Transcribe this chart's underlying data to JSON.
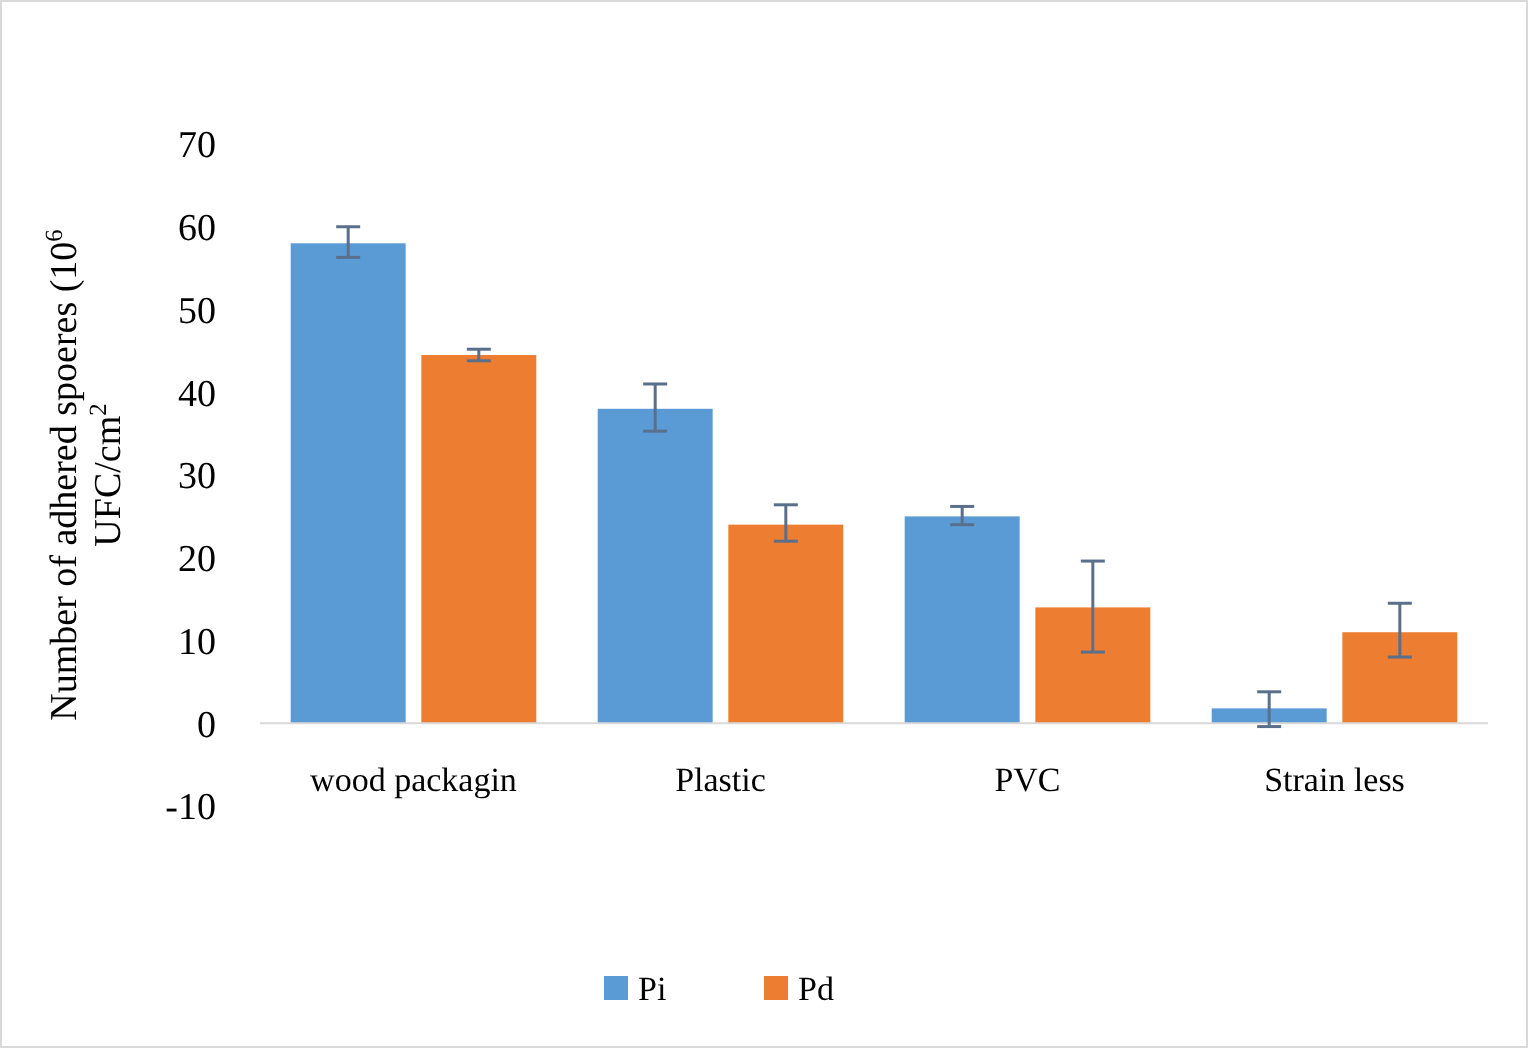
{
  "chart_data": {
    "type": "bar",
    "ylabel": "Number of adhered  spoeres (10$^{6}$ UFC/cm$^{2}$",
    "categories": [
      "wood packagin",
      "Plastic",
      "PVC",
      "Strain less"
    ],
    "series": [
      {
        "name": "Pi",
        "color": "#5b9bd5",
        "values": [
          58,
          38,
          25,
          1.8
        ],
        "errors": [
          [
            56.3,
            60
          ],
          [
            35.3,
            41
          ],
          [
            24,
            26.2
          ],
          [
            -0.4,
            3.8
          ]
        ]
      },
      {
        "name": "Pd",
        "color": "#ed7d31",
        "values": [
          44.5,
          24,
          14,
          11
        ],
        "errors": [
          [
            43.8,
            45.2
          ],
          [
            22,
            26.4
          ],
          [
            8.6,
            19.6
          ],
          [
            8,
            14.5
          ]
        ]
      }
    ],
    "ylim": [
      -10,
      70
    ],
    "yticks": [
      -10,
      0,
      10,
      20,
      30,
      40,
      50,
      60,
      70
    ],
    "grid": false,
    "legend": "bottom"
  }
}
